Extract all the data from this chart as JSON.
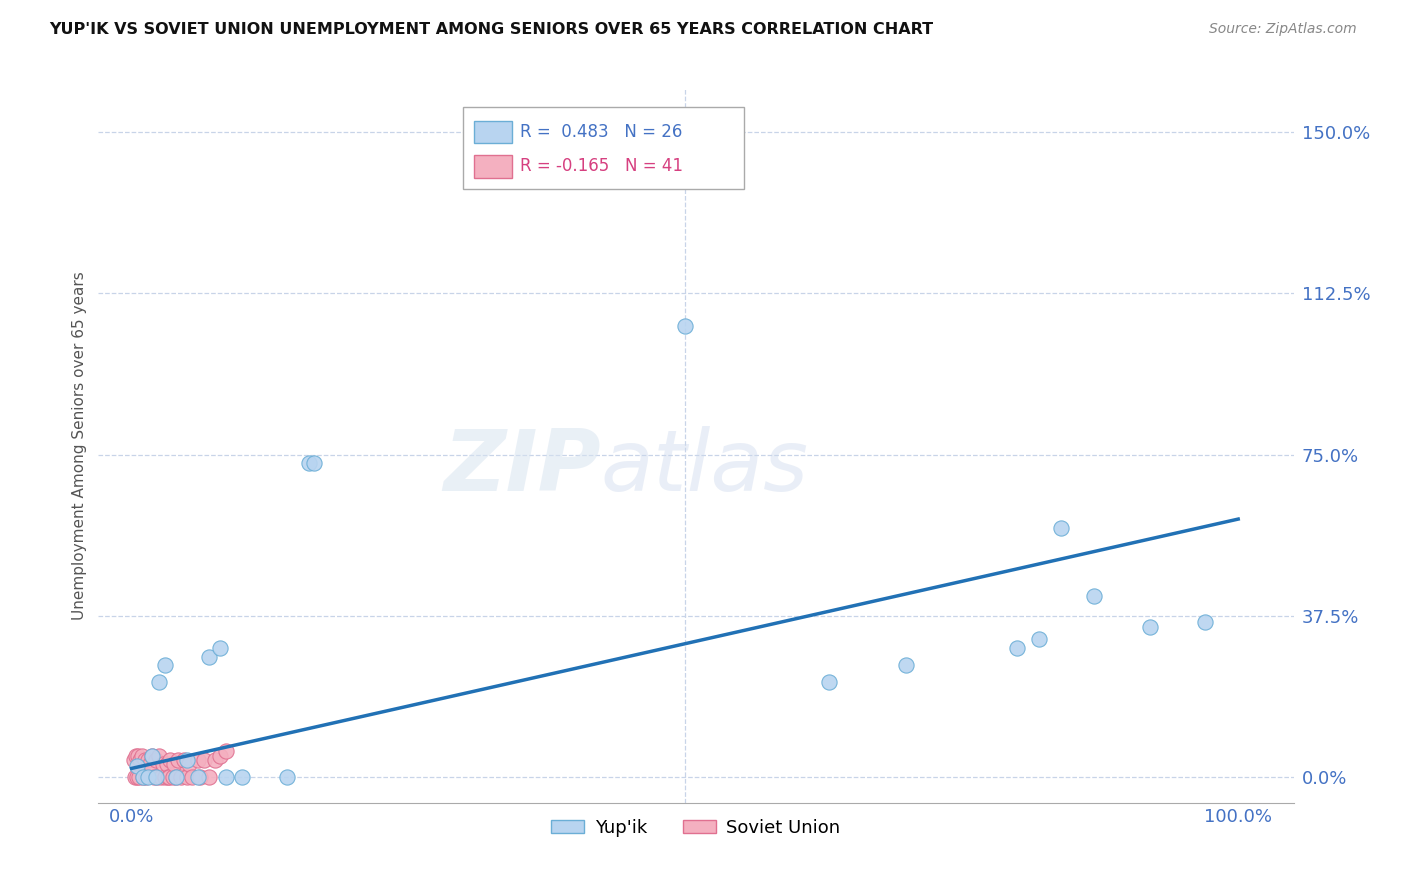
{
  "title": "YUP'IK VS SOVIET UNION UNEMPLOYMENT AMONG SENIORS OVER 65 YEARS CORRELATION CHART",
  "source": "Source: ZipAtlas.com",
  "ylabel": "Unemployment Among Seniors over 65 years",
  "yupik_color": "#b8d4f0",
  "yupik_edge": "#6baed6",
  "soviet_color": "#f4b0c0",
  "soviet_edge": "#e07090",
  "trendline_color": "#2171b5",
  "watermark_zip": "ZIP",
  "watermark_atlas": "atlas",
  "background": "#ffffff",
  "grid_color": "#c8d4e8",
  "yupik_x": [
    0.005,
    0.01,
    0.015,
    0.018,
    0.022,
    0.025,
    0.03,
    0.04,
    0.05,
    0.06,
    0.07,
    0.08,
    0.085,
    0.1,
    0.14,
    0.16,
    0.165,
    0.5,
    0.63,
    0.7,
    0.8,
    0.82,
    0.84,
    0.87,
    0.92,
    0.97
  ],
  "yupik_y": [
    0.025,
    0.0,
    0.0,
    0.05,
    0.0,
    0.22,
    0.26,
    0.0,
    0.04,
    0.0,
    0.28,
    0.3,
    0.0,
    0.0,
    0.0,
    0.73,
    0.73,
    1.05,
    0.22,
    0.26,
    0.3,
    0.32,
    0.58,
    0.42,
    0.35,
    0.36
  ],
  "soviet_x": [
    0.002,
    0.003,
    0.004,
    0.005,
    0.006,
    0.007,
    0.008,
    0.009,
    0.01,
    0.012,
    0.013,
    0.015,
    0.017,
    0.018,
    0.02,
    0.022,
    0.023,
    0.025,
    0.027,
    0.028,
    0.03,
    0.032,
    0.033,
    0.034,
    0.035,
    0.037,
    0.038,
    0.04,
    0.042,
    0.045,
    0.047,
    0.05,
    0.052,
    0.055,
    0.06,
    0.062,
    0.065,
    0.07,
    0.075,
    0.08,
    0.085
  ],
  "soviet_y": [
    0.04,
    0.0,
    0.05,
    0.0,
    0.05,
    0.0,
    0.04,
    0.05,
    0.0,
    0.04,
    0.0,
    0.04,
    0.03,
    0.05,
    0.0,
    0.04,
    0.0,
    0.05,
    0.0,
    0.03,
    0.0,
    0.03,
    0.0,
    0.0,
    0.04,
    0.0,
    0.03,
    0.0,
    0.04,
    0.0,
    0.04,
    0.0,
    0.03,
    0.0,
    0.04,
    0.0,
    0.04,
    0.0,
    0.04,
    0.05,
    0.06
  ],
  "trendline_x": [
    0.0,
    1.0
  ],
  "trendline_y_start": 0.02,
  "trendline_y_end": 0.6,
  "xlim": [
    -0.03,
    1.05
  ],
  "ylim": [
    -0.06,
    1.6
  ],
  "yticks": [
    0.0,
    0.375,
    0.75,
    1.125,
    1.5
  ],
  "ytick_labels": [
    "0.0%",
    "37.5%",
    "75.0%",
    "112.5%",
    "150.0%"
  ],
  "xticks": [
    0.0,
    1.0
  ],
  "xtick_labels": [
    "0.0%",
    "100.0%"
  ],
  "marker_size": 120,
  "legend_r1_color": "#4472c4",
  "legend_r2_color": "#d64080"
}
